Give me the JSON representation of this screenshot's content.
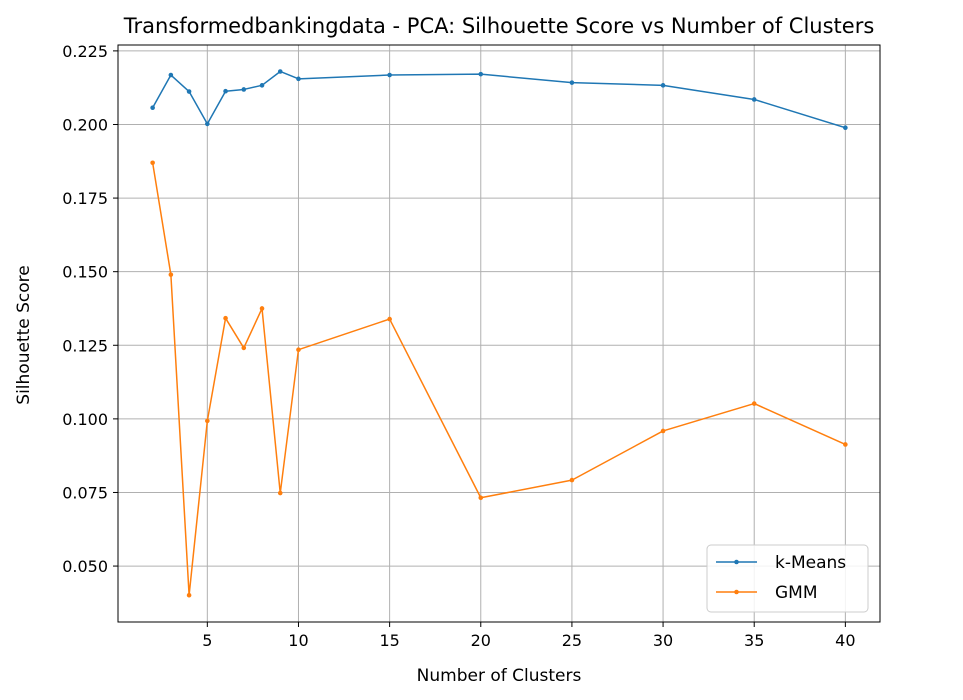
{
  "chart_data": {
    "type": "line",
    "title": "Transformedbankingdata - PCA: Silhouette Score vs Number of Clusters",
    "xlabel": "Number of Clusters",
    "ylabel": "Silhouette Score",
    "xlim": [
      0.1,
      41.9
    ],
    "ylim": [
      0.031,
      0.227
    ],
    "xticks": [
      5,
      10,
      15,
      20,
      25,
      30,
      35,
      40
    ],
    "yticks": [
      0.05,
      0.075,
      0.1,
      0.125,
      0.15,
      0.175,
      0.2,
      0.225
    ],
    "ytick_labels": [
      "0.050",
      "0.075",
      "0.100",
      "0.125",
      "0.150",
      "0.175",
      "0.200",
      "0.225"
    ],
    "grid": true,
    "legend_position": "bottom-right",
    "x": [
      2,
      3,
      4,
      5,
      6,
      7,
      8,
      9,
      10,
      15,
      20,
      25,
      30,
      35,
      40
    ],
    "series": [
      {
        "name": "k-Means",
        "color": "#1f77b4",
        "values": [
          0.2057,
          0.2168,
          0.2112,
          0.2002,
          0.2113,
          0.2119,
          0.2133,
          0.218,
          0.2155,
          0.2168,
          0.2171,
          0.2142,
          0.2133,
          0.2085,
          0.1989
        ]
      },
      {
        "name": "GMM",
        "color": "#ff7f0e",
        "values": [
          0.187,
          0.149,
          0.0401,
          0.0993,
          0.1342,
          0.1241,
          0.1375,
          0.0748,
          0.1235,
          0.1339,
          0.0732,
          0.0792,
          0.0959,
          0.1052,
          0.0913
        ]
      }
    ]
  }
}
